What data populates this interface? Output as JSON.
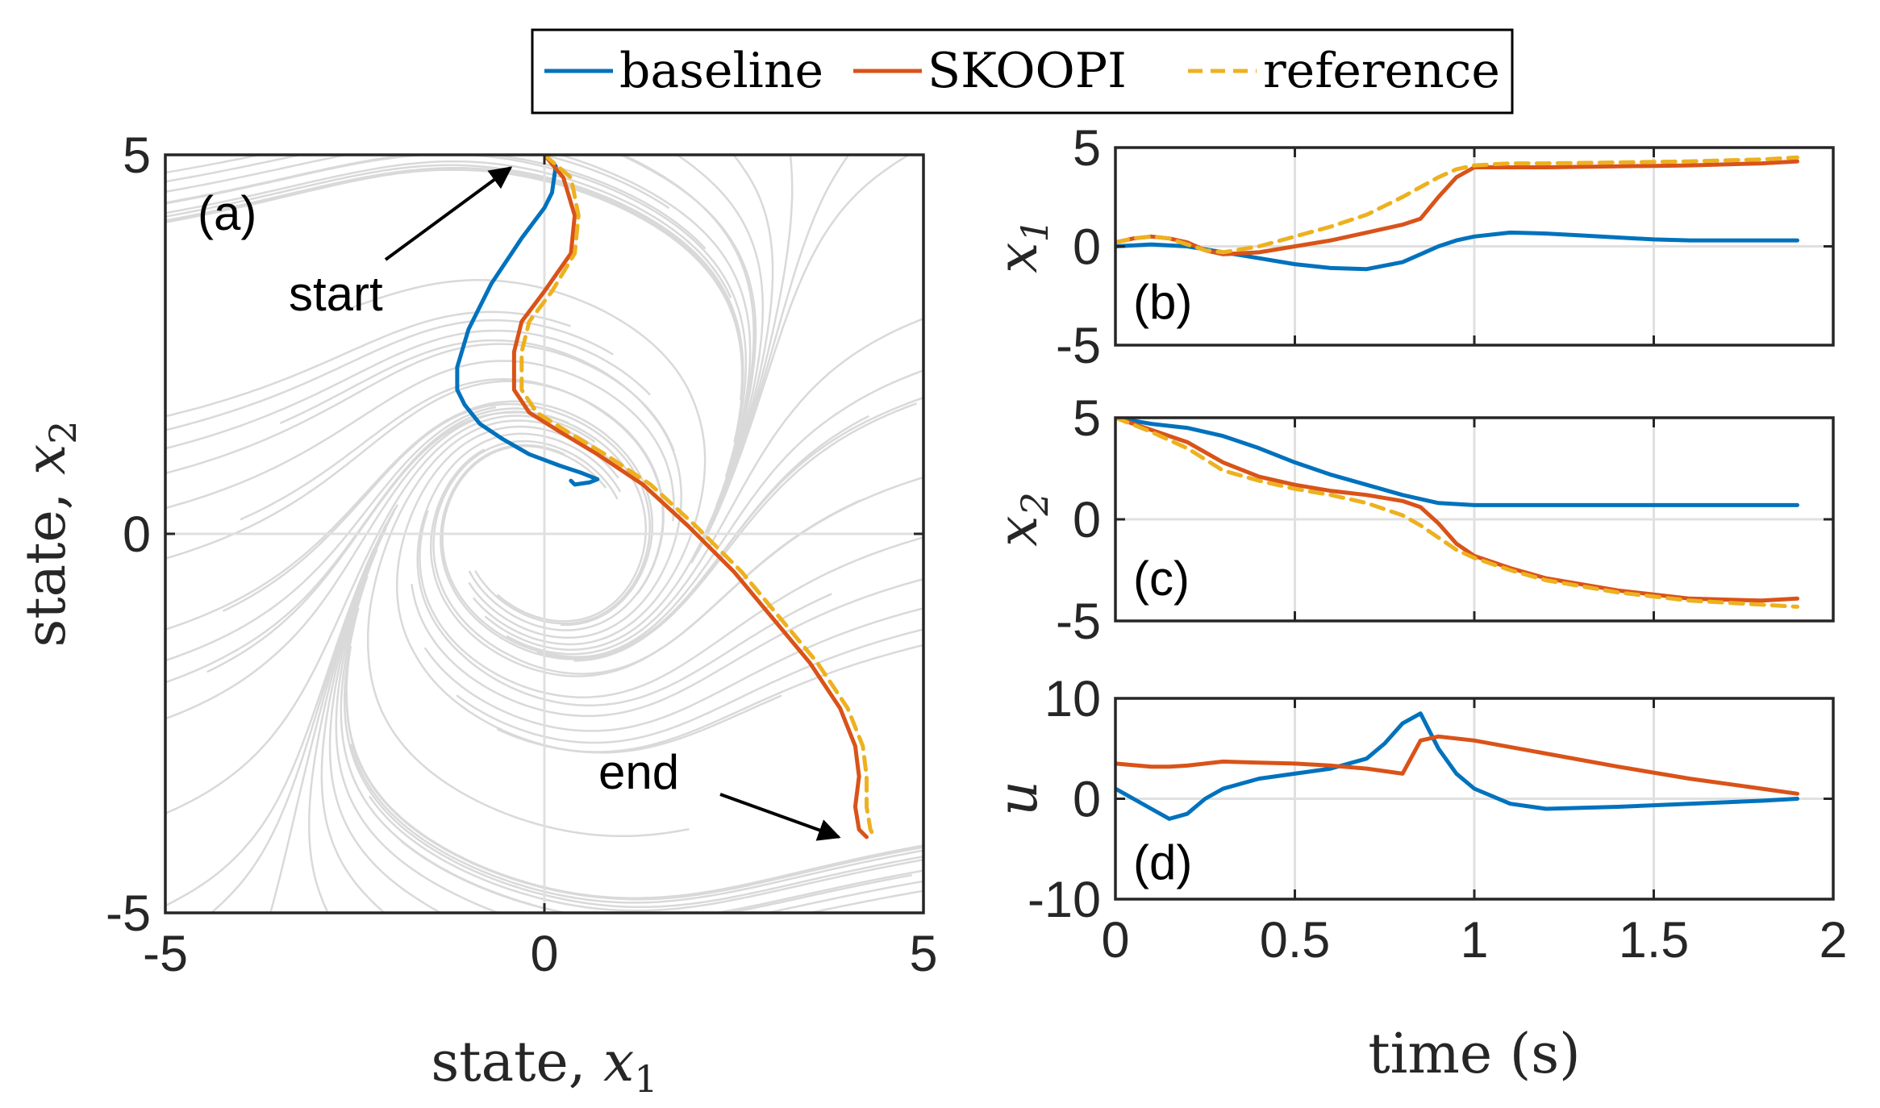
{
  "legend": {
    "placement": "top-center",
    "entries": [
      {
        "label": "baseline",
        "color": "#0072BD",
        "dash": "solid"
      },
      {
        "label": "SKOOPI",
        "color": "#D95319",
        "dash": "solid"
      },
      {
        "label": "reference",
        "color": "#EDB120",
        "dash": "dashed"
      }
    ]
  },
  "colors": {
    "streamline": "#d9d9d9",
    "grid": "#e0e0e0",
    "axis": "#262626"
  },
  "annotations": {
    "start": "start",
    "end": "end"
  },
  "chart_data": [
    {
      "id": "a",
      "panel_label": "(a)",
      "type": "line",
      "background": "streamline phase portrait (grey)",
      "xlabel_text": "state, ",
      "xlabel_var": "x",
      "xlabel_sub": "1",
      "ylabel_text": "state, ",
      "ylabel_var": "x",
      "ylabel_sub": "2",
      "xlim": [
        -5,
        5
      ],
      "ylim": [
        -5,
        5
      ],
      "xticks": [
        -5,
        0,
        5
      ],
      "yticks": [
        -5,
        0,
        5
      ],
      "grid_at_zero": true,
      "series": [
        {
          "name": "baseline",
          "x": [
            0.0,
            0.15,
            0.1,
            0.0,
            -0.3,
            -0.7,
            -1.0,
            -1.15,
            -1.15,
            -1.05,
            -0.85,
            -0.55,
            -0.2,
            0.2,
            0.5,
            0.7,
            0.6,
            0.4,
            0.35
          ],
          "y": [
            5.0,
            4.85,
            4.5,
            4.3,
            3.9,
            3.3,
            2.7,
            2.2,
            1.9,
            1.7,
            1.45,
            1.25,
            1.05,
            0.9,
            0.8,
            0.72,
            0.68,
            0.65,
            0.7
          ]
        },
        {
          "name": "SKOOPI",
          "x": [
            0.0,
            0.25,
            0.4,
            0.35,
            0.0,
            -0.3,
            -0.4,
            -0.4,
            -0.2,
            0.2,
            0.7,
            1.3,
            1.9,
            2.5,
            3.0,
            3.5,
            3.9,
            4.1,
            4.15,
            4.1,
            4.15,
            4.25
          ],
          "y": [
            5.0,
            4.7,
            4.2,
            3.7,
            3.2,
            2.8,
            2.4,
            1.9,
            1.6,
            1.35,
            1.05,
            0.65,
            0.1,
            -0.5,
            -1.1,
            -1.7,
            -2.3,
            -2.8,
            -3.2,
            -3.6,
            -3.9,
            -4.0
          ]
        },
        {
          "name": "reference",
          "x": [
            0.0,
            0.35,
            0.45,
            0.4,
            0.1,
            -0.2,
            -0.3,
            -0.3,
            -0.1,
            0.3,
            0.8,
            1.4,
            2.0,
            2.6,
            3.1,
            3.6,
            4.0,
            4.2,
            4.25,
            4.25,
            4.3,
            4.35
          ],
          "y": [
            5.0,
            4.7,
            4.2,
            3.7,
            3.2,
            2.8,
            2.4,
            1.9,
            1.6,
            1.35,
            1.05,
            0.65,
            0.1,
            -0.5,
            -1.1,
            -1.7,
            -2.3,
            -2.8,
            -3.2,
            -3.6,
            -3.9,
            -4.0
          ]
        }
      ]
    },
    {
      "id": "b",
      "panel_label": "(b)",
      "type": "line",
      "ylabel_var": "x",
      "ylabel_sub": "1",
      "xlim": [
        0,
        2
      ],
      "ylim": [
        -5,
        5
      ],
      "xticks": [
        0,
        0.5,
        1,
        1.5,
        2
      ],
      "yticks": [
        -5,
        0,
        5
      ],
      "show_xticklabels": false,
      "grid": true,
      "series": [
        {
          "name": "baseline",
          "x": [
            0,
            0.1,
            0.2,
            0.3,
            0.4,
            0.5,
            0.6,
            0.7,
            0.8,
            0.85,
            0.9,
            0.95,
            1.0,
            1.1,
            1.2,
            1.3,
            1.4,
            1.5,
            1.6,
            1.7,
            1.8,
            1.9
          ],
          "y": [
            0.0,
            0.1,
            0.0,
            -0.3,
            -0.6,
            -0.9,
            -1.1,
            -1.15,
            -0.8,
            -0.4,
            0.0,
            0.3,
            0.5,
            0.7,
            0.65,
            0.55,
            0.45,
            0.35,
            0.3,
            0.3,
            0.3,
            0.3
          ]
        },
        {
          "name": "SKOOPI",
          "x": [
            0,
            0.05,
            0.1,
            0.15,
            0.2,
            0.25,
            0.3,
            0.4,
            0.5,
            0.6,
            0.7,
            0.8,
            0.85,
            0.9,
            0.95,
            1.0,
            1.1,
            1.2,
            1.4,
            1.6,
            1.8,
            1.9
          ],
          "y": [
            0.2,
            0.4,
            0.5,
            0.4,
            0.2,
            -0.2,
            -0.4,
            -0.3,
            0.0,
            0.3,
            0.7,
            1.1,
            1.4,
            2.5,
            3.5,
            4.0,
            4.0,
            4.0,
            4.05,
            4.1,
            4.2,
            4.3
          ]
        },
        {
          "name": "reference",
          "x": [
            0,
            0.05,
            0.1,
            0.15,
            0.2,
            0.25,
            0.3,
            0.4,
            0.5,
            0.6,
            0.7,
            0.8,
            0.85,
            0.9,
            0.95,
            1.0,
            1.1,
            1.2,
            1.4,
            1.6,
            1.8,
            1.9
          ],
          "y": [
            0.2,
            0.4,
            0.5,
            0.4,
            0.1,
            -0.2,
            -0.3,
            0.0,
            0.5,
            1.0,
            1.6,
            2.5,
            3.0,
            3.5,
            3.9,
            4.1,
            4.2,
            4.2,
            4.25,
            4.3,
            4.4,
            4.5
          ]
        }
      ]
    },
    {
      "id": "c",
      "panel_label": "(c)",
      "type": "line",
      "ylabel_var": "x",
      "ylabel_sub": "2",
      "xlim": [
        0,
        2
      ],
      "ylim": [
        -5,
        5
      ],
      "xticks": [
        0,
        0.5,
        1,
        1.5,
        2
      ],
      "yticks": [
        -5,
        0,
        5
      ],
      "show_xticklabels": false,
      "grid": true,
      "series": [
        {
          "name": "baseline",
          "x": [
            0,
            0.1,
            0.2,
            0.3,
            0.4,
            0.5,
            0.6,
            0.7,
            0.8,
            0.9,
            1.0,
            1.2,
            1.4,
            1.6,
            1.8,
            1.9
          ],
          "y": [
            5.0,
            4.7,
            4.5,
            4.1,
            3.5,
            2.8,
            2.2,
            1.7,
            1.2,
            0.8,
            0.7,
            0.7,
            0.7,
            0.7,
            0.7,
            0.7
          ]
        },
        {
          "name": "SKOOPI",
          "x": [
            0,
            0.1,
            0.2,
            0.3,
            0.4,
            0.5,
            0.6,
            0.7,
            0.8,
            0.85,
            0.9,
            0.95,
            1.0,
            1.1,
            1.2,
            1.4,
            1.6,
            1.8,
            1.9
          ],
          "y": [
            5.0,
            4.4,
            3.8,
            2.8,
            2.1,
            1.7,
            1.4,
            1.2,
            0.9,
            0.6,
            -0.2,
            -1.2,
            -1.8,
            -2.4,
            -2.9,
            -3.5,
            -3.9,
            -4.0,
            -3.9
          ]
        },
        {
          "name": "reference",
          "x": [
            0,
            0.1,
            0.2,
            0.3,
            0.4,
            0.5,
            0.6,
            0.7,
            0.8,
            0.85,
            0.9,
            0.95,
            1.0,
            1.1,
            1.2,
            1.4,
            1.6,
            1.8,
            1.9
          ],
          "y": [
            5.0,
            4.3,
            3.5,
            2.4,
            1.9,
            1.5,
            1.2,
            0.8,
            0.2,
            -0.3,
            -0.9,
            -1.5,
            -1.9,
            -2.5,
            -3.0,
            -3.6,
            -4.0,
            -4.2,
            -4.3
          ]
        }
      ]
    },
    {
      "id": "d",
      "panel_label": "(d)",
      "type": "line",
      "ylabel_var": "u",
      "xlabel_text": "time (s)",
      "xlim": [
        0,
        2
      ],
      "ylim": [
        -10,
        10
      ],
      "xticks": [
        0,
        0.5,
        1,
        1.5,
        2
      ],
      "yticks": [
        -10,
        0,
        10
      ],
      "show_xticklabels": true,
      "grid": true,
      "series": [
        {
          "name": "baseline",
          "x": [
            0,
            0.05,
            0.1,
            0.15,
            0.2,
            0.25,
            0.3,
            0.4,
            0.5,
            0.6,
            0.7,
            0.75,
            0.8,
            0.85,
            0.9,
            0.95,
            1.0,
            1.1,
            1.2,
            1.4,
            1.6,
            1.8,
            1.9
          ],
          "y": [
            1.0,
            0.0,
            -1.0,
            -2.0,
            -1.5,
            0.0,
            1.0,
            2.0,
            2.5,
            3.0,
            4.0,
            5.5,
            7.5,
            8.5,
            5.0,
            2.5,
            1.0,
            -0.5,
            -1.0,
            -0.8,
            -0.5,
            -0.2,
            0.0
          ]
        },
        {
          "name": "SKOOPI",
          "x": [
            0,
            0.1,
            0.15,
            0.2,
            0.3,
            0.4,
            0.5,
            0.6,
            0.7,
            0.8,
            0.85,
            0.9,
            1.0,
            1.2,
            1.4,
            1.6,
            1.8,
            1.9
          ],
          "y": [
            3.5,
            3.2,
            3.2,
            3.3,
            3.7,
            3.6,
            3.5,
            3.3,
            3.0,
            2.5,
            5.8,
            6.2,
            5.8,
            4.5,
            3.2,
            2.0,
            1.0,
            0.5
          ]
        }
      ]
    }
  ]
}
